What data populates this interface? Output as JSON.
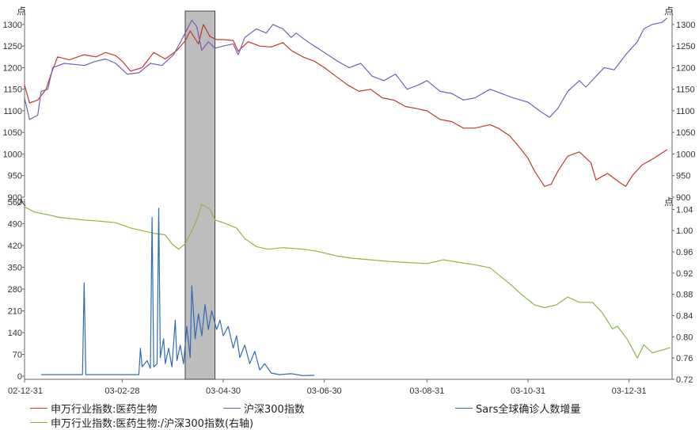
{
  "chart_data": {
    "type": "line",
    "x_ticks": [
      "02-12-31",
      "03-02-28",
      "03-04-30",
      "03-06-30",
      "03-08-31",
      "03-10-31",
      "03-12-31"
    ],
    "top_panel": {
      "y_unit_left": "点",
      "y_unit_right": "点",
      "y_ticks": [
        900,
        950,
        1000,
        1050,
        1100,
        1150,
        1200,
        1250,
        1300
      ],
      "ylim": [
        900,
        1320
      ],
      "series": [
        {
          "name": "申万行业指数:医药生物",
          "color": "#c0392b",
          "points": [
            [
              "2002-12-31",
              1160
            ],
            [
              "2003-01-03",
              1118
            ],
            [
              "2003-01-08",
              1125
            ],
            [
              "2003-01-13",
              1150
            ],
            [
              "2003-01-16",
              1185
            ],
            [
              "2003-01-20",
              1225
            ],
            [
              "2003-01-27",
              1218
            ],
            [
              "2003-02-05",
              1230
            ],
            [
              "2003-02-12",
              1225
            ],
            [
              "2003-02-18",
              1235
            ],
            [
              "2003-02-24",
              1228
            ],
            [
              "2003-02-28",
              1215
            ],
            [
              "2003-03-05",
              1192
            ],
            [
              "2003-03-12",
              1200
            ],
            [
              "2003-03-19",
              1235
            ],
            [
              "2003-03-26",
              1220
            ],
            [
              "2003-04-02",
              1240
            ],
            [
              "2003-04-07",
              1262
            ],
            [
              "2003-04-10",
              1285
            ],
            [
              "2003-04-15",
              1255
            ],
            [
              "2003-04-18",
              1300
            ],
            [
              "2003-04-22",
              1272
            ],
            [
              "2003-04-26",
              1265
            ],
            [
              "2003-04-30",
              1265
            ],
            [
              "2003-05-06",
              1263
            ],
            [
              "2003-05-09",
              1238
            ],
            [
              "2003-05-15",
              1260
            ],
            [
              "2003-05-22",
              1250
            ],
            [
              "2003-05-29",
              1248
            ],
            [
              "2003-06-05",
              1258
            ],
            [
              "2003-06-10",
              1240
            ],
            [
              "2003-06-17",
              1225
            ],
            [
              "2003-06-24",
              1215
            ],
            [
              "2003-06-30",
              1200
            ],
            [
              "2003-07-07",
              1180
            ],
            [
              "2003-07-14",
              1160
            ],
            [
              "2003-07-21",
              1145
            ],
            [
              "2003-07-28",
              1150
            ],
            [
              "2003-08-04",
              1130
            ],
            [
              "2003-08-11",
              1125
            ],
            [
              "2003-08-18",
              1110
            ],
            [
              "2003-08-25",
              1105
            ],
            [
              "2003-08-31",
              1100
            ],
            [
              "2003-09-08",
              1080
            ],
            [
              "2003-09-15",
              1075
            ],
            [
              "2003-09-22",
              1060
            ],
            [
              "2003-09-29",
              1060
            ],
            [
              "2003-10-08",
              1068
            ],
            [
              "2003-10-13",
              1060
            ],
            [
              "2003-10-20",
              1042
            ],
            [
              "2003-10-27",
              1010
            ],
            [
              "2003-10-31",
              990
            ],
            [
              "2003-11-04",
              960
            ],
            [
              "2003-11-10",
              925
            ],
            [
              "2003-11-14",
              930
            ],
            [
              "2003-11-18",
              960
            ],
            [
              "2003-11-24",
              995
            ],
            [
              "2003-12-01",
              1005
            ],
            [
              "2003-12-08",
              980
            ],
            [
              "2003-12-11",
              940
            ],
            [
              "2003-12-18",
              955
            ],
            [
              "2003-12-25",
              935
            ],
            [
              "2003-12-29",
              925
            ],
            [
              "2004-01-02",
              950
            ],
            [
              "2004-01-08",
              975
            ],
            [
              "2004-01-15",
              990
            ],
            [
              "2004-01-23",
              1010
            ]
          ]
        },
        {
          "name": "沪深300指数",
          "color": "#7d5cb8",
          "points": [
            [
              "2002-12-31",
              1130
            ],
            [
              "2003-01-03",
              1080
            ],
            [
              "2003-01-08",
              1090
            ],
            [
              "2003-01-10",
              1145
            ],
            [
              "2003-01-14",
              1150
            ],
            [
              "2003-01-17",
              1200
            ],
            [
              "2003-01-24",
              1210
            ],
            [
              "2003-02-05",
              1205
            ],
            [
              "2003-02-12",
              1215
            ],
            [
              "2003-02-18",
              1220
            ],
            [
              "2003-02-24",
              1210
            ],
            [
              "2003-03-03",
              1185
            ],
            [
              "2003-03-10",
              1188
            ],
            [
              "2003-03-17",
              1210
            ],
            [
              "2003-03-24",
              1205
            ],
            [
              "2003-03-31",
              1230
            ],
            [
              "2003-04-07",
              1280
            ],
            [
              "2003-04-11",
              1310
            ],
            [
              "2003-04-14",
              1295
            ],
            [
              "2003-04-17",
              1240
            ],
            [
              "2003-04-21",
              1260
            ],
            [
              "2003-04-25",
              1245
            ],
            [
              "2003-04-30",
              1250
            ],
            [
              "2003-05-06",
              1255
            ],
            [
              "2003-05-09",
              1230
            ],
            [
              "2003-05-13",
              1270
            ],
            [
              "2003-05-20",
              1290
            ],
            [
              "2003-05-26",
              1280
            ],
            [
              "2003-05-30",
              1300
            ],
            [
              "2003-06-05",
              1290
            ],
            [
              "2003-06-10",
              1270
            ],
            [
              "2003-06-13",
              1280
            ],
            [
              "2003-06-20",
              1260
            ],
            [
              "2003-06-30",
              1235
            ],
            [
              "2003-07-08",
              1215
            ],
            [
              "2003-07-15",
              1200
            ],
            [
              "2003-07-22",
              1210
            ],
            [
              "2003-07-29",
              1180
            ],
            [
              "2003-08-05",
              1170
            ],
            [
              "2003-08-12",
              1185
            ],
            [
              "2003-08-19",
              1150
            ],
            [
              "2003-08-26",
              1160
            ],
            [
              "2003-08-31",
              1170
            ],
            [
              "2003-09-08",
              1145
            ],
            [
              "2003-09-15",
              1140
            ],
            [
              "2003-09-22",
              1125
            ],
            [
              "2003-09-29",
              1130
            ],
            [
              "2003-10-08",
              1150
            ],
            [
              "2003-10-15",
              1140
            ],
            [
              "2003-10-22",
              1130
            ],
            [
              "2003-10-31",
              1120
            ],
            [
              "2003-11-07",
              1100
            ],
            [
              "2003-11-13",
              1085
            ],
            [
              "2003-11-18",
              1105
            ],
            [
              "2003-11-24",
              1145
            ],
            [
              "2003-12-01",
              1170
            ],
            [
              "2003-12-05",
              1155
            ],
            [
              "2003-12-11",
              1180
            ],
            [
              "2003-12-16",
              1200
            ],
            [
              "2003-12-22",
              1195
            ],
            [
              "2003-12-29",
              1230
            ],
            [
              "2004-01-05",
              1260
            ],
            [
              "2004-01-09",
              1290
            ],
            [
              "2004-01-14",
              1300
            ],
            [
              "2004-01-20",
              1305
            ],
            [
              "2004-01-23",
              1315
            ]
          ]
        }
      ]
    },
    "bottom_panel": {
      "y_unit_left": "人",
      "y_unit_right": "点",
      "y_ticks_left": [
        0,
        70,
        140,
        210,
        280,
        350,
        420,
        490,
        560
      ],
      "ylim_left": [
        -10,
        570
      ],
      "y_ticks_right": [
        "0.72",
        "0.76",
        "0.80",
        "0.84",
        "0.88",
        "0.92",
        "0.96",
        "1.00",
        "1.04"
      ],
      "ylim_right": [
        0.72,
        1.06
      ],
      "series": [
        {
          "name": "Sars全球确诊人数增量",
          "axis": "left",
          "color": "#2f6db5",
          "points": [
            [
              "2003-01-10",
              5
            ],
            [
              "2003-02-04",
              5
            ],
            [
              "2003-02-05",
              300
            ],
            [
              "2003-02-06",
              5
            ],
            [
              "2003-03-10",
              5
            ],
            [
              "2003-03-11",
              90
            ],
            [
              "2003-03-12",
              30
            ],
            [
              "2003-03-15",
              50
            ],
            [
              "2003-03-17",
              25
            ],
            [
              "2003-03-18",
              510
            ],
            [
              "2003-03-19",
              30
            ],
            [
              "2003-03-21",
              40
            ],
            [
              "2003-03-22",
              540
            ],
            [
              "2003-03-23",
              60
            ],
            [
              "2003-03-25",
              120
            ],
            [
              "2003-03-26",
              40
            ],
            [
              "2003-03-28",
              90
            ],
            [
              "2003-03-30",
              30
            ],
            [
              "2003-04-01",
              180
            ],
            [
              "2003-04-02",
              50
            ],
            [
              "2003-04-04",
              100
            ],
            [
              "2003-04-06",
              40
            ],
            [
              "2003-04-08",
              160
            ],
            [
              "2003-04-10",
              60
            ],
            [
              "2003-04-11",
              290
            ],
            [
              "2003-04-13",
              120
            ],
            [
              "2003-04-15",
              200
            ],
            [
              "2003-04-17",
              130
            ],
            [
              "2003-04-19",
              230
            ],
            [
              "2003-04-21",
              150
            ],
            [
              "2003-04-23",
              210
            ],
            [
              "2003-04-26",
              150
            ],
            [
              "2003-04-28",
              180
            ],
            [
              "2003-04-30",
              130
            ],
            [
              "2003-05-03",
              160
            ],
            [
              "2003-05-06",
              90
            ],
            [
              "2003-05-08",
              130
            ],
            [
              "2003-05-10",
              60
            ],
            [
              "2003-05-13",
              100
            ],
            [
              "2003-05-16",
              40
            ],
            [
              "2003-05-19",
              80
            ],
            [
              "2003-05-22",
              20
            ],
            [
              "2003-05-25",
              40
            ],
            [
              "2003-05-29",
              10
            ],
            [
              "2003-06-03",
              5
            ],
            [
              "2003-06-10",
              8
            ],
            [
              "2003-06-17",
              2
            ],
            [
              "2003-06-24",
              3
            ]
          ]
        },
        {
          "name": "申万行业指数:医药生物:/沪深300指数(右轴)",
          "axis": "right",
          "color": "#8cb83e",
          "points": [
            [
              "2002-12-31",
              1.045
            ],
            [
              "2003-01-06",
              1.035
            ],
            [
              "2003-01-14",
              1.03
            ],
            [
              "2003-01-21",
              1.025
            ],
            [
              "2003-02-05",
              1.02
            ],
            [
              "2003-02-14",
              1.018
            ],
            [
              "2003-02-24",
              1.015
            ],
            [
              "2003-03-05",
              1.005
            ],
            [
              "2003-03-12",
              1.0
            ],
            [
              "2003-03-19",
              0.995
            ],
            [
              "2003-03-26",
              0.992
            ],
            [
              "2003-03-30",
              0.975
            ],
            [
              "2003-04-03",
              0.965
            ],
            [
              "2003-04-07",
              0.975
            ],
            [
              "2003-04-11",
              1.0
            ],
            [
              "2003-04-14",
              1.02
            ],
            [
              "2003-04-17",
              1.05
            ],
            [
              "2003-04-22",
              1.04
            ],
            [
              "2003-04-25",
              1.02
            ],
            [
              "2003-04-30",
              1.015
            ],
            [
              "2003-05-08",
              1.005
            ],
            [
              "2003-05-13",
              0.985
            ],
            [
              "2003-05-20",
              0.97
            ],
            [
              "2003-05-27",
              0.965
            ],
            [
              "2003-06-05",
              0.968
            ],
            [
              "2003-06-17",
              0.965
            ],
            [
              "2003-06-24",
              0.962
            ],
            [
              "2003-06-30",
              0.958
            ],
            [
              "2003-07-08",
              0.952
            ],
            [
              "2003-07-17",
              0.948
            ],
            [
              "2003-07-28",
              0.945
            ],
            [
              "2003-08-08",
              0.942
            ],
            [
              "2003-08-19",
              0.94
            ],
            [
              "2003-08-31",
              0.938
            ],
            [
              "2003-09-10",
              0.945
            ],
            [
              "2003-09-20",
              0.94
            ],
            [
              "2003-09-30",
              0.935
            ],
            [
              "2003-10-08",
              0.93
            ],
            [
              "2003-10-14",
              0.915
            ],
            [
              "2003-10-20",
              0.9
            ],
            [
              "2003-10-27",
              0.88
            ],
            [
              "2003-11-04",
              0.86
            ],
            [
              "2003-11-10",
              0.855
            ],
            [
              "2003-11-17",
              0.86
            ],
            [
              "2003-11-24",
              0.875
            ],
            [
              "2003-12-01",
              0.865
            ],
            [
              "2003-12-09",
              0.865
            ],
            [
              "2003-12-15",
              0.845
            ],
            [
              "2003-12-21",
              0.815
            ],
            [
              "2003-12-24",
              0.82
            ],
            [
              "2003-12-30",
              0.795
            ],
            [
              "2004-01-05",
              0.76
            ],
            [
              "2004-01-09",
              0.785
            ],
            [
              "2004-01-14",
              0.77
            ],
            [
              "2004-01-20",
              0.775
            ],
            [
              "2004-01-25",
              0.78
            ]
          ]
        }
      ]
    },
    "shaded_band": {
      "from": "2003-04-07",
      "to": "2003-04-25",
      "color": "#bdbdbd"
    }
  }
}
